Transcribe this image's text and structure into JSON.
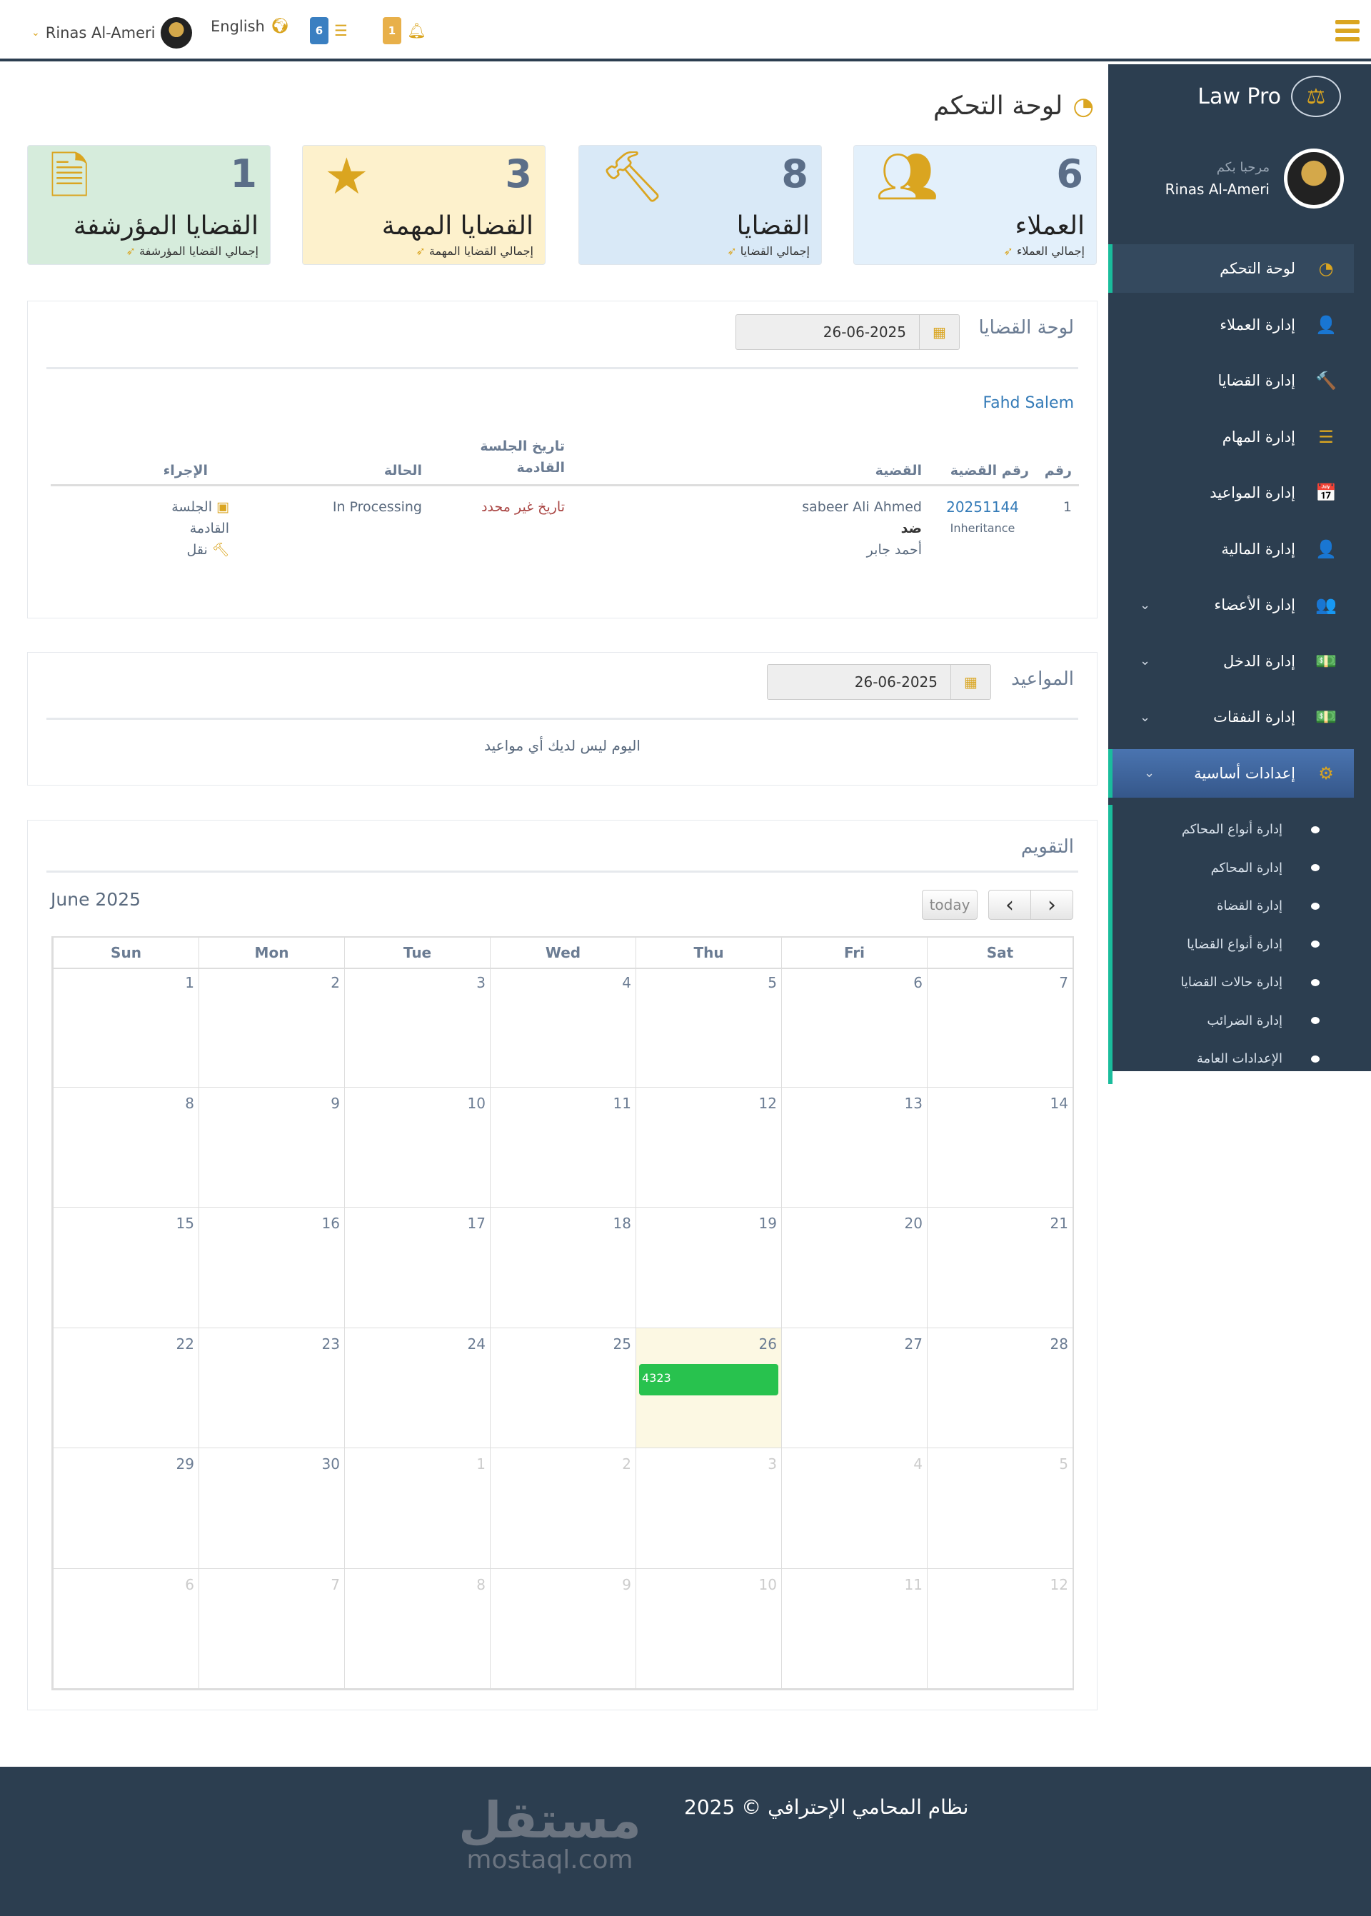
{
  "topbar": {
    "user_name": "Rinas Al-Ameri",
    "language": "English",
    "tasks_count": "6",
    "notifications_count": "1",
    "colors": {
      "tasks_badge": "#3a7fc1",
      "notifications_badge": "#e8b04a",
      "accent": "#daa520"
    }
  },
  "sidebar": {
    "brand": "Law Pro",
    "welcome": "مرحبا بكم",
    "user_name": "Rinas Al-Ameri",
    "items": [
      {
        "label": "لوحة التحكم",
        "icon": "dashboard-icon",
        "glyph": "◔",
        "active": true
      },
      {
        "label": "إدارة العملاء",
        "icon": "user-plus-icon",
        "glyph": "👤"
      },
      {
        "label": "إدارة القضايا",
        "icon": "gavel-icon",
        "glyph": "🔨"
      },
      {
        "label": "إدارة المهام",
        "icon": "tasks-icon",
        "glyph": "☰"
      },
      {
        "label": "إدارة المواعيد",
        "icon": "calendar-plus-icon",
        "glyph": "📅"
      },
      {
        "label": "إدارة المالية",
        "icon": "user-plus-icon",
        "glyph": "👤"
      },
      {
        "label": "إدارة الأعضاء",
        "icon": "users-icon",
        "glyph": "👥",
        "has_children": true
      },
      {
        "label": "إدارة الدخل",
        "icon": "money-icon",
        "glyph": "💵",
        "has_children": true
      },
      {
        "label": "إدارة النفقات",
        "icon": "money-icon",
        "glyph": "💵",
        "has_children": true
      },
      {
        "label": "إعدادات أساسية",
        "icon": "gear-icon",
        "glyph": "⚙",
        "has_children": true,
        "open": true
      }
    ],
    "sub_items": [
      "إدارة أنواع المحاكم",
      "إدارة المحاكم",
      "إدارة القضاة",
      "إدارة أنواع القضايا",
      "إدارة حالات القضايا",
      "إدارة الضرائب",
      "الإعدادات العامة"
    ]
  },
  "page": {
    "title": "لوحة التحكم"
  },
  "stats": [
    {
      "count": "6",
      "title": "العملاء",
      "subtitle": "إجمالي العملاء",
      "icon": "users-icon",
      "bg": "#e3f0fb"
    },
    {
      "count": "8",
      "title": "القضايا",
      "subtitle": "إجمالي القضايا",
      "icon": "gavel-icon",
      "bg": "#d9e9f7"
    },
    {
      "count": "3",
      "title": "القضايا المهمة",
      "subtitle": "إجمالي القضايا المهمة",
      "icon": "star-icon",
      "bg": "#fdf1cc"
    },
    {
      "count": "1",
      "title": "القضايا المؤرشفة",
      "subtitle": "إجمالي القضايا المؤرشفة",
      "icon": "archive-file-icon",
      "bg": "#d6ecdc"
    }
  ],
  "cases_panel": {
    "title": "لوحة القضايا",
    "date": "26-06-2025",
    "client": "Fahd Salem",
    "columns": [
      "رقم",
      "رقم القضية",
      "القضية",
      "تاريخ الجلسة القادمة",
      "الحالة",
      "الإجراء"
    ],
    "rows": [
      {
        "no": "1",
        "case_number": "20251144",
        "case_type": "Inheritance",
        "party_a": "sabeer Ali Ahmed",
        "versus": "ضد",
        "party_b": "أحمد جابر",
        "next_session": "تاريخ غير محدد",
        "status": "In Processing",
        "action_next_session": "الجلسة القادمة",
        "action_transfer": "نقل"
      }
    ]
  },
  "appointments_panel": {
    "title": "المواعيد",
    "date": "26-06-2025",
    "empty_message": "اليوم ليس لديك أي مواعيد"
  },
  "calendar_panel": {
    "title": "التقويم",
    "month_label": "June 2025",
    "today_label": "today",
    "prev": "‹",
    "next": "›",
    "weekdays": [
      "Sun",
      "Mon",
      "Tue",
      "Wed",
      "Thu",
      "Fri",
      "Sat"
    ],
    "today": 26,
    "weeks": [
      [
        {
          "d": 1
        },
        {
          "d": 2
        },
        {
          "d": 3
        },
        {
          "d": 4
        },
        {
          "d": 5
        },
        {
          "d": 6
        },
        {
          "d": 7
        }
      ],
      [
        {
          "d": 8
        },
        {
          "d": 9
        },
        {
          "d": 10
        },
        {
          "d": 11
        },
        {
          "d": 12
        },
        {
          "d": 13
        },
        {
          "d": 14
        }
      ],
      [
        {
          "d": 15
        },
        {
          "d": 16
        },
        {
          "d": 17
        },
        {
          "d": 18
        },
        {
          "d": 19
        },
        {
          "d": 20
        },
        {
          "d": 21
        }
      ],
      [
        {
          "d": 22
        },
        {
          "d": 23
        },
        {
          "d": 24
        },
        {
          "d": 25
        },
        {
          "d": 26
        },
        {
          "d": 27
        },
        {
          "d": 28
        }
      ],
      [
        {
          "d": 29
        },
        {
          "d": 30
        },
        {
          "d": 1,
          "o": true
        },
        {
          "d": 2,
          "o": true
        },
        {
          "d": 3,
          "o": true
        },
        {
          "d": 4,
          "o": true
        },
        {
          "d": 5,
          "o": true
        }
      ],
      [
        {
          "d": 6,
          "o": true
        },
        {
          "d": 7,
          "o": true
        },
        {
          "d": 8,
          "o": true
        },
        {
          "d": 9,
          "o": true
        },
        {
          "d": 10,
          "o": true
        },
        {
          "d": 11,
          "o": true
        },
        {
          "d": 12,
          "o": true
        }
      ]
    ],
    "events": [
      {
        "day": 26,
        "title": "4323",
        "color": "#28c24e"
      }
    ]
  },
  "footer": {
    "text": "نظام المحامي الإحترافي © 2025",
    "watermark_ar": "مستقل",
    "watermark_en": "mostaql.com"
  }
}
